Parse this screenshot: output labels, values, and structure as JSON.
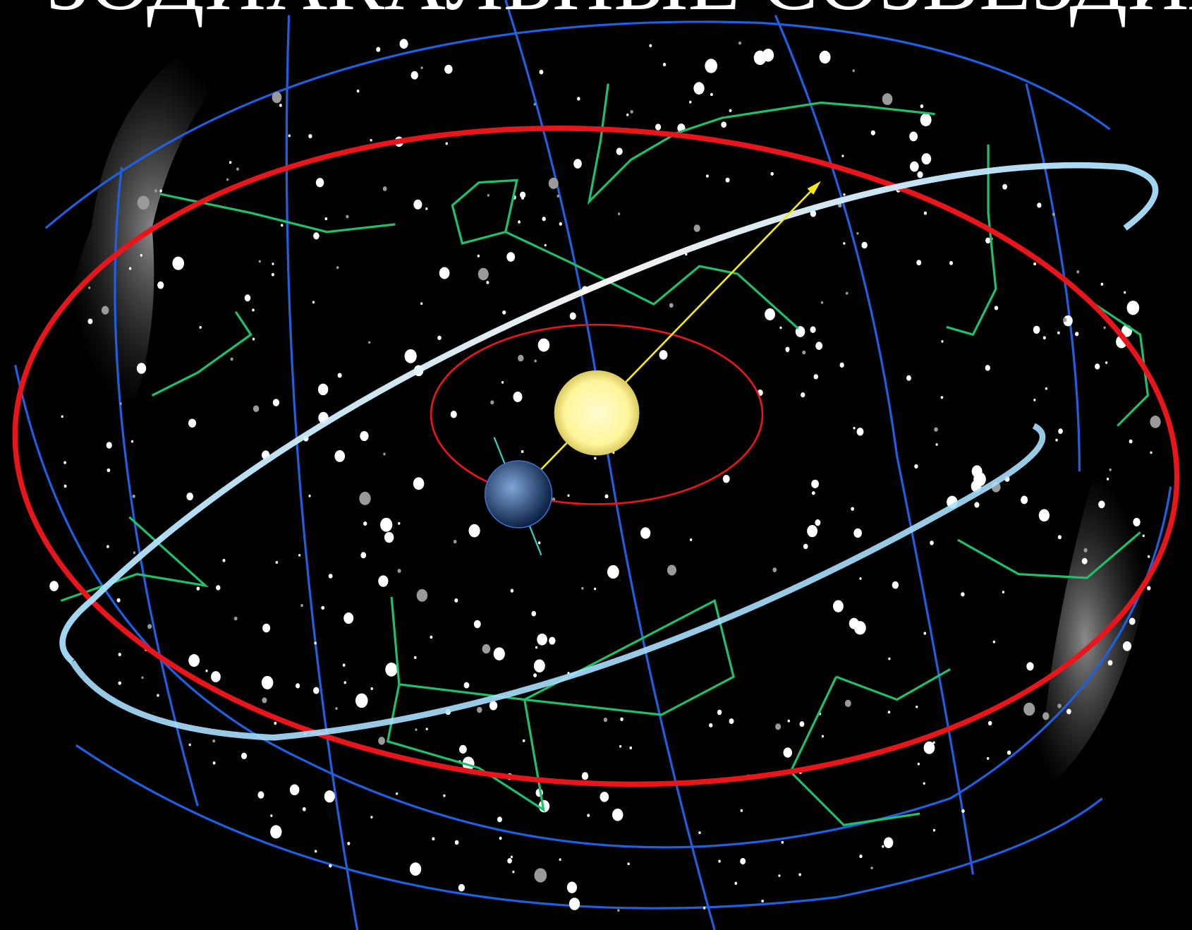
{
  "title": "ЗОДИАКАЛЬНЫЕ СОЗВЕЗДИЯ"
}
